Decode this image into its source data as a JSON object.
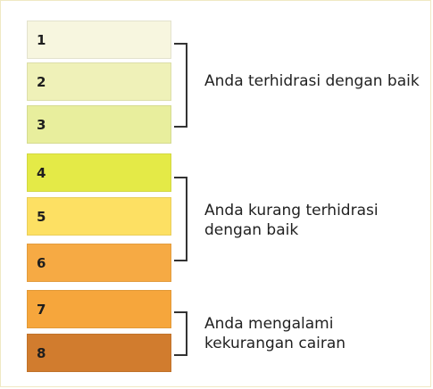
{
  "levels": [
    {
      "number": "1",
      "color": "#f7f6df"
    },
    {
      "number": "2",
      "color": "#eff1b8"
    },
    {
      "number": "3",
      "color": "#e8ee9d"
    },
    {
      "number": "4",
      "color": "#e4ea47"
    },
    {
      "number": "5",
      "color": "#fde063"
    },
    {
      "number": "6",
      "color": "#f6aa44"
    },
    {
      "number": "7",
      "color": "#f6a63c"
    },
    {
      "number": "8",
      "color": "#d17c2e"
    }
  ],
  "groups": [
    {
      "label": "Anda terhidrasi dengan baik"
    },
    {
      "label": "Anda kurang terhidrasi\ndengan baik"
    },
    {
      "label": "Anda mengalami\nkekurangan cairan"
    }
  ]
}
